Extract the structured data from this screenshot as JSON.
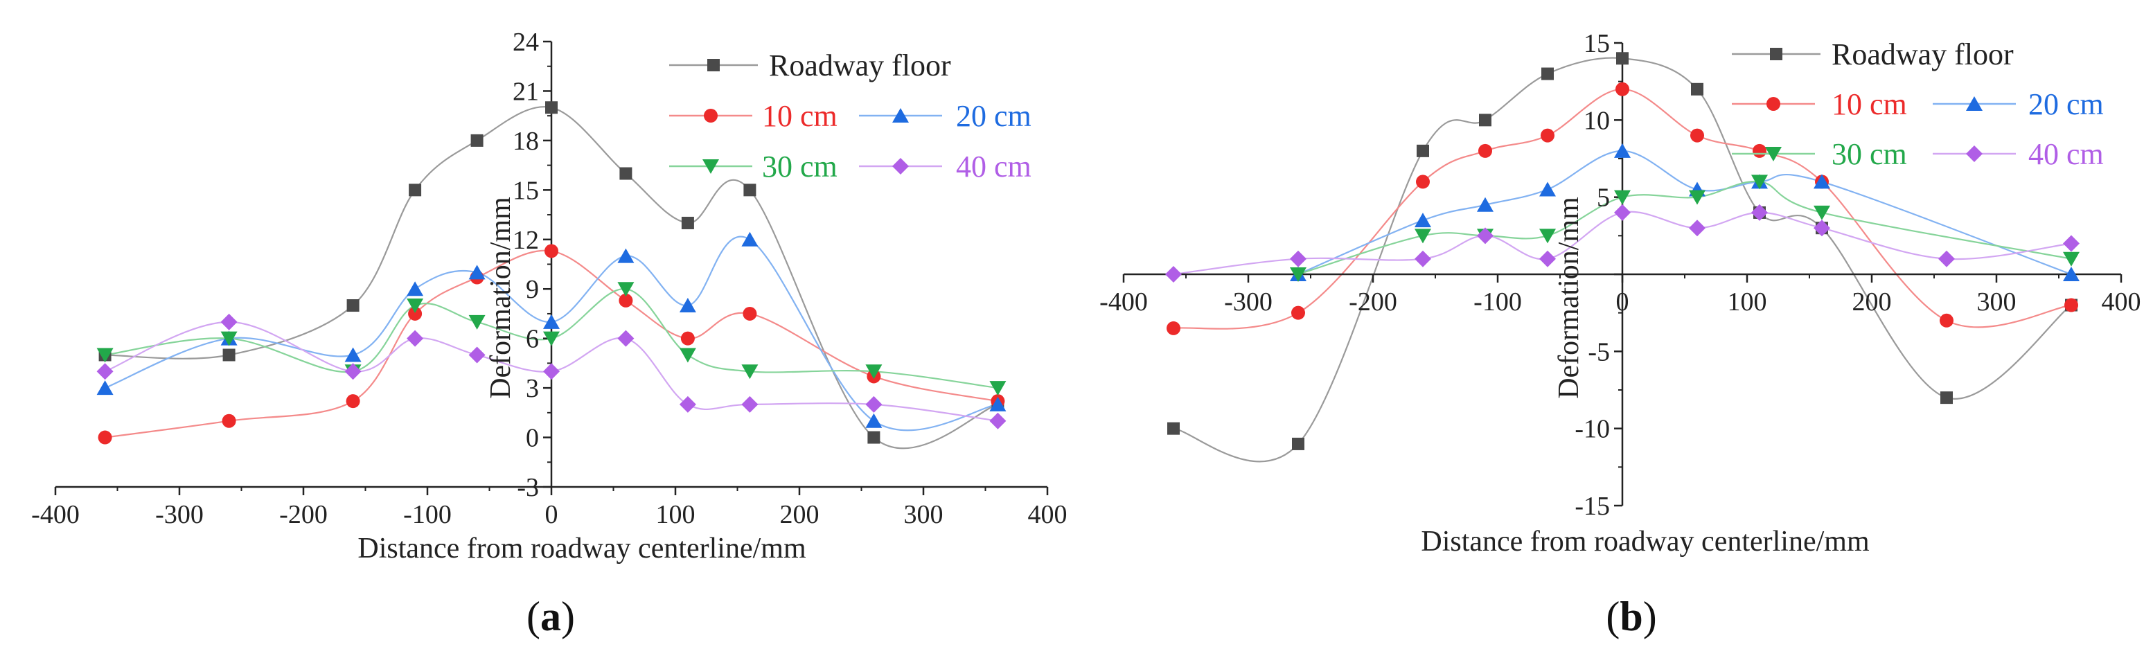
{
  "colors": {
    "roadway_floor": "#4a4a4a",
    "cm10": "#ec2a2a",
    "cm20": "#1e6be0",
    "cm30": "#22a84a",
    "cm40": "#b05ee6",
    "line_roadway_floor": "#9a9a9a",
    "line_cm10": "#f48a8a",
    "line_cm20": "#82b2f2",
    "line_cm30": "#86d49a",
    "line_cm40": "#d2a6f2"
  },
  "legend_labels": {
    "roadway_floor": "Roadway floor",
    "cm10": "10 cm",
    "cm20": "20 cm",
    "cm30": "30 cm",
    "cm40": "40 cm"
  },
  "chart_data": [
    {
      "panel_label": "a",
      "type": "line",
      "title": "",
      "xlabel": "Distance from roadway centerline/mm",
      "ylabel": "Deformation/mm",
      "xlim": [
        -400,
        400
      ],
      "ylim": [
        -3,
        24
      ],
      "xticks": [
        -400,
        -300,
        -200,
        -100,
        0,
        100,
        200,
        300,
        400
      ],
      "yticks": [
        -3,
        0,
        3,
        6,
        9,
        12,
        15,
        18,
        21,
        24
      ],
      "x": [
        -360,
        -260,
        -160,
        -110,
        -60,
        0,
        60,
        110,
        160,
        260,
        360
      ],
      "series": [
        {
          "name": "Roadway floor",
          "key": "roadway_floor",
          "marker": "square",
          "values": [
            5,
            5,
            8,
            15,
            18,
            20,
            16,
            13,
            15,
            0,
            2
          ]
        },
        {
          "name": "10 cm",
          "key": "cm10",
          "marker": "circle",
          "values": [
            0,
            1,
            2.2,
            7.5,
            9.7,
            11.3,
            8.3,
            6,
            7.5,
            3.7,
            2.2
          ]
        },
        {
          "name": "20 cm",
          "key": "cm20",
          "marker": "triangle-up",
          "values": [
            3,
            6,
            5,
            9,
            10,
            7,
            11,
            8,
            12,
            1,
            2
          ]
        },
        {
          "name": "30 cm",
          "key": "cm30",
          "marker": "triangle-down",
          "values": [
            5,
            6,
            4,
            8,
            7,
            6,
            9,
            5,
            4,
            4,
            3
          ]
        },
        {
          "name": "40 cm",
          "key": "cm40",
          "marker": "diamond",
          "values": [
            4,
            7,
            4,
            6,
            5,
            4,
            6,
            2,
            2,
            2,
            1
          ]
        }
      ]
    },
    {
      "panel_label": "b",
      "type": "line",
      "title": "",
      "xlabel": "Distance from roadway centerline/mm",
      "ylabel": "Deformation/mm",
      "xlim": [
        -400,
        400
      ],
      "ylim": [
        -15,
        15
      ],
      "xticks": [
        -400,
        -300,
        -200,
        -100,
        0,
        100,
        200,
        300,
        400
      ],
      "yticks": [
        -15,
        -10,
        -5,
        0,
        5,
        10,
        15
      ],
      "x": [
        -360,
        -260,
        -160,
        -110,
        -60,
        0,
        60,
        110,
        160,
        260,
        360
      ],
      "series": [
        {
          "name": "Roadway floor",
          "key": "roadway_floor",
          "marker": "square",
          "values": [
            -10,
            -11,
            8,
            10,
            13,
            14,
            12,
            4,
            3,
            -8,
            -2
          ]
        },
        {
          "name": "10 cm",
          "key": "cm10",
          "marker": "circle",
          "values": [
            -3.5,
            -2.5,
            6,
            8,
            9,
            12,
            9,
            8,
            6,
            -3,
            -2
          ]
        },
        {
          "name": "20 cm",
          "key": "cm20",
          "marker": "triangle-up",
          "values": [
            null,
            0,
            3.5,
            4.5,
            5.5,
            8,
            5.5,
            6,
            6,
            null,
            0
          ]
        },
        {
          "name": "30 cm",
          "key": "cm30",
          "marker": "triangle-down",
          "values": [
            null,
            0,
            2.5,
            2.5,
            2.5,
            5,
            5,
            6,
            4,
            null,
            1
          ]
        },
        {
          "name": "40 cm",
          "key": "cm40",
          "marker": "diamond",
          "values": [
            0,
            1,
            1,
            2.5,
            1,
            4,
            3,
            4,
            3,
            1,
            2
          ]
        }
      ]
    }
  ]
}
